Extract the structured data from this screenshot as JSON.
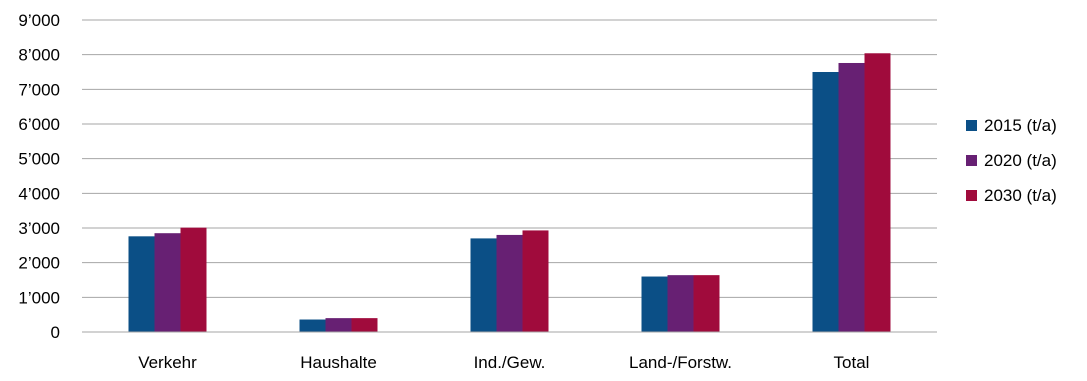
{
  "chart_data": {
    "type": "bar",
    "title": "",
    "xlabel": "",
    "ylabel": "",
    "ylim": [
      0,
      9000
    ],
    "yticks": [
      0,
      1000,
      2000,
      3000,
      4000,
      5000,
      6000,
      7000,
      8000,
      9000
    ],
    "ytick_labels": [
      "0",
      "1’000",
      "2’000",
      "3’000",
      "4’000",
      "5’000",
      "6’000",
      "7’000",
      "8’000",
      "9’000"
    ],
    "grid": true,
    "legend_position": "right",
    "categories": [
      "Verkehr",
      "Haushalte",
      "Ind./Gew.",
      "Land-/Forstw.",
      "Total"
    ],
    "series": [
      {
        "name": "2015 (t/a)",
        "color": "#0b4f86",
        "values": [
          2760,
          360,
          2700,
          1600,
          7500
        ]
      },
      {
        "name": "2020 (t/a)",
        "color": "#672073",
        "values": [
          2850,
          400,
          2800,
          1640,
          7760
        ]
      },
      {
        "name": "2030 (t/a)",
        "color": "#a00b3c",
        "values": [
          3010,
          400,
          2930,
          1640,
          8040
        ]
      }
    ]
  }
}
